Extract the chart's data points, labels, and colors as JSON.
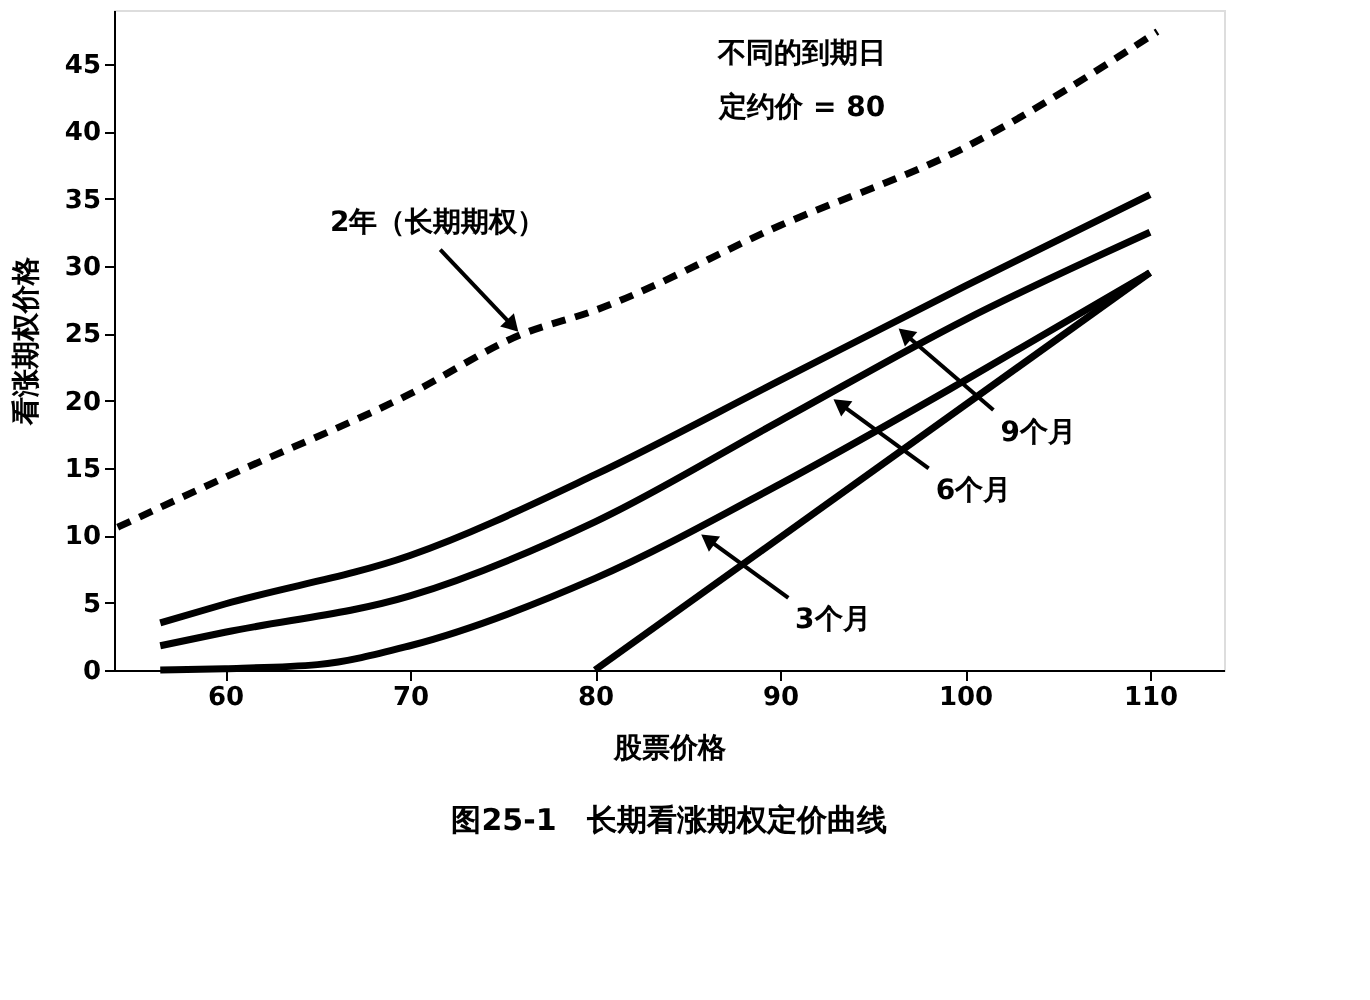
{
  "chart_data": {
    "type": "line",
    "title": "图25-1　长期看涨期权定价曲线",
    "xlabel": "股票价格",
    "ylabel": "看涨期权价格",
    "annotations": [
      "不同的到期日",
      "定约价 = 80",
      {
        "text": "2年（长期期权）",
        "x": 76,
        "y": 24.9
      },
      {
        "text": "9个月",
        "x": 96.2,
        "y": 25.6
      },
      {
        "text": "6个月",
        "x": 92.7,
        "y": 20.3
      },
      {
        "text": "3个月",
        "x": 85.6,
        "y": 10.2
      }
    ],
    "series": [
      {
        "color": "#000000",
        "line_style": "dashed",
        "x": [
          54.2,
          60,
          70,
          76,
          80,
          90,
          100,
          110.4
        ],
        "values": [
          10.6,
          14.3,
          20.5,
          24.9,
          26.7,
          33,
          38.8,
          47.4
        ]
      },
      {
        "color": "#000000",
        "line_style": "solid",
        "x": [
          56.5,
          60,
          70,
          80,
          90,
          100,
          110
        ],
        "values": [
          3.5,
          4.9,
          8.5,
          14.5,
          21.5,
          28.5,
          35.3
        ]
      },
      {
        "color": "#000000",
        "line_style": "solid",
        "x": [
          56.5,
          60,
          70,
          80,
          90,
          100,
          110
        ],
        "values": [
          1.8,
          2.8,
          5.5,
          11,
          18.5,
          26,
          32.5
        ]
      },
      {
        "color": "#000000",
        "line_style": "solid",
        "x": [
          56.5,
          60,
          65,
          70,
          80,
          90,
          100,
          110
        ],
        "values": [
          0,
          0.1,
          0.4,
          1.8,
          6.8,
          13.8,
          21.5,
          29.5
        ]
      },
      {
        "color": "#000000",
        "line_style": "solid",
        "x": [
          80,
          110
        ],
        "values": [
          0,
          29.5
        ]
      }
    ],
    "xlim": [
      54,
      114
    ],
    "ylim": [
      0,
      49
    ],
    "xticks": [
      60,
      70,
      80,
      90,
      100,
      110
    ],
    "yticks": [
      0,
      5,
      10,
      15,
      20,
      25,
      30,
      35,
      40,
      45
    ],
    "grid": false,
    "marker": "none"
  }
}
